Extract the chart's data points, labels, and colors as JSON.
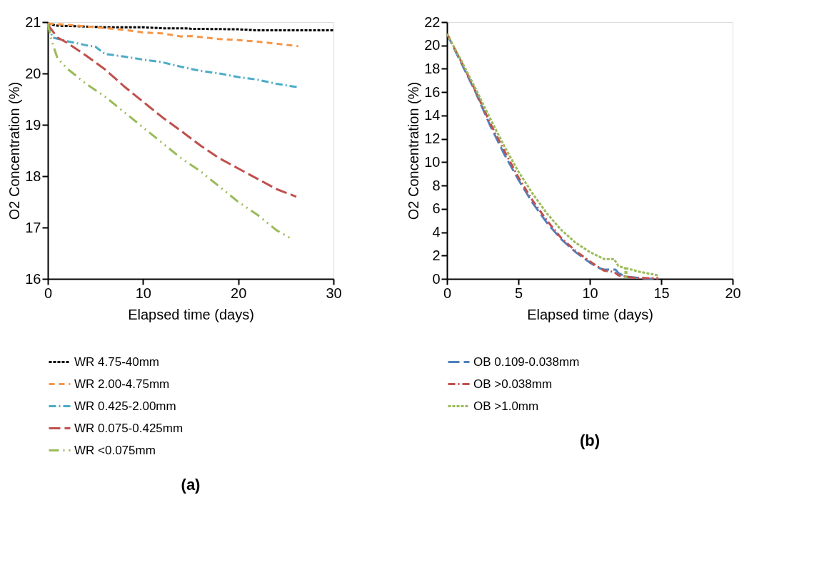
{
  "chart_data": [
    {
      "type": "line",
      "xlabel": "Elapsed time  (days)",
      "ylabel": "O2 Concentration (%)",
      "xlim": [
        0,
        30
      ],
      "xticks": [
        0,
        10,
        20,
        30
      ],
      "ylim": [
        16,
        21
      ],
      "yticks": [
        16,
        17,
        18,
        19,
        20,
        21
      ],
      "grid": false,
      "legend": "bottom",
      "annotations": [
        "(a)"
      ],
      "series": [
        {
          "name": "WR 4.75-40mm",
          "color": "#000000",
          "line_style": "dotted",
          "x": [
            0,
            1,
            3,
            6,
            8,
            10,
            12,
            14.5,
            15,
            20,
            22,
            25,
            30
          ],
          "values": [
            20.97,
            20.93,
            20.92,
            20.9,
            20.9,
            20.9,
            20.88,
            20.88,
            20.87,
            20.86,
            20.84,
            20.84,
            20.84
          ]
        },
        {
          "name": "WR 2.00-4.75mm",
          "color": "#f79646",
          "line_style": "dashed",
          "x": [
            0,
            2,
            5,
            8,
            10,
            12,
            14,
            15,
            18,
            20,
            22,
            24,
            26.3
          ],
          "values": [
            20.97,
            20.95,
            20.9,
            20.85,
            20.8,
            20.78,
            20.72,
            20.73,
            20.67,
            20.65,
            20.62,
            20.58,
            20.53
          ]
        },
        {
          "name": "WR 0.425-2.00mm",
          "color": "#4bacc6",
          "line_style": "dashdot",
          "x": [
            0,
            0.5,
            2,
            4,
            5,
            6,
            8,
            10,
            12,
            14,
            16,
            18,
            20,
            22,
            24,
            26.3
          ],
          "values": [
            20.95,
            20.7,
            20.63,
            20.55,
            20.52,
            20.38,
            20.33,
            20.27,
            20.22,
            20.13,
            20.05,
            20.0,
            19.93,
            19.88,
            19.8,
            19.73
          ]
        },
        {
          "name": "WR 0.075-0.425mm",
          "color": "#c0504d",
          "line_style": "longdash",
          "x": [
            0,
            1,
            2,
            4,
            6,
            8,
            10,
            12,
            14,
            16,
            18,
            20,
            22,
            24,
            26.1
          ],
          "values": [
            20.95,
            20.7,
            20.6,
            20.35,
            20.08,
            19.75,
            19.45,
            19.15,
            18.88,
            18.6,
            18.35,
            18.15,
            17.95,
            17.75,
            17.6
          ]
        },
        {
          "name": "WR <0.075mm",
          "color": "#9bbb59",
          "line_style": "dashdotdot",
          "x": [
            0,
            0.3,
            1,
            2,
            4,
            6,
            8,
            10,
            12,
            14,
            16,
            18,
            20,
            22,
            24,
            25.4
          ],
          "values": [
            20.97,
            20.7,
            20.3,
            20.1,
            19.8,
            19.55,
            19.25,
            18.95,
            18.65,
            18.35,
            18.1,
            17.8,
            17.5,
            17.25,
            16.95,
            16.8
          ]
        }
      ]
    },
    {
      "type": "line",
      "xlabel": "Elapsed time (days)",
      "ylabel": "O2 Concentration (%)",
      "xlim": [
        0,
        20
      ],
      "xticks": [
        0,
        5,
        10,
        15,
        20
      ],
      "ylim": [
        0,
        22
      ],
      "yticks": [
        0,
        2,
        4,
        6,
        8,
        10,
        12,
        14,
        16,
        18,
        20,
        22
      ],
      "grid": false,
      "legend": "bottom",
      "annotations": [
        "(b)"
      ],
      "series": [
        {
          "name": "OB 0.109-0.038mm",
          "color": "#4f81bd",
          "line_style": "longdash",
          "x": [
            0,
            1,
            2,
            3,
            4,
            5,
            6,
            7,
            8,
            9,
            10,
            10.7,
            11,
            11.8,
            12,
            12.5,
            14,
            14.8
          ],
          "values": [
            21,
            18.5,
            16,
            13.2,
            10.7,
            8.5,
            6.5,
            4.8,
            3.4,
            2.3,
            1.4,
            0.9,
            0.8,
            0.8,
            0.5,
            0.2,
            0.02,
            0
          ]
        },
        {
          "name": "OB >0.038mm",
          "color": "#c0504d",
          "line_style": "dashdot",
          "x": [
            0,
            1,
            2,
            3,
            4,
            5,
            6,
            7,
            8,
            9,
            10,
            11,
            11.7,
            12,
            13,
            14.8
          ],
          "values": [
            21,
            18.6,
            16.1,
            13.4,
            11,
            8.7,
            6.7,
            5,
            3.5,
            2.4,
            1.5,
            0.7,
            0.6,
            0.3,
            0.1,
            0.05
          ]
        },
        {
          "name": "OB >1.0mm",
          "color": "#9bbb59",
          "line_style": "dotted",
          "x": [
            0,
            1,
            2,
            3,
            4,
            5,
            6,
            7,
            8,
            9,
            10,
            11,
            11.7,
            12,
            12.5,
            12.5,
            12.6,
            13.5,
            14.8
          ],
          "values": [
            21,
            18.7,
            16.3,
            13.8,
            11.4,
            9.2,
            7.3,
            5.6,
            4.2,
            3.1,
            2.3,
            1.7,
            1.7,
            1.1,
            0.9,
            0,
            0.9,
            0.6,
            0.3
          ]
        }
      ]
    }
  ]
}
